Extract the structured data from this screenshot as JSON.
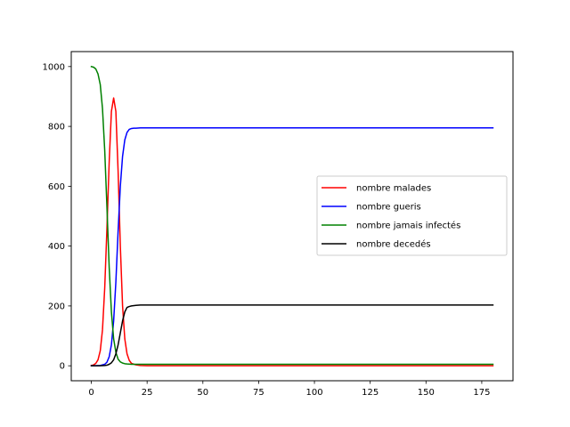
{
  "chart_data": {
    "type": "line",
    "title": "",
    "xlabel": "",
    "ylabel": "",
    "xlim": [
      -9,
      189
    ],
    "ylim": [
      -50,
      1050
    ],
    "xticks": [
      0,
      25,
      50,
      75,
      100,
      125,
      150,
      175
    ],
    "yticks": [
      0,
      200,
      400,
      600,
      800,
      1000
    ],
    "grid": false,
    "legend_position": "center-right",
    "series": [
      {
        "name": "nombre malades",
        "color": "#ff0000",
        "x": [
          0,
          1,
          2,
          3,
          4,
          5,
          6,
          7,
          8,
          9,
          10,
          11,
          12,
          13,
          14,
          15,
          16,
          17,
          18,
          20,
          22,
          25,
          180
        ],
        "y": [
          1,
          3,
          8,
          20,
          50,
          120,
          260,
          460,
          680,
          850,
          895,
          850,
          650,
          400,
          200,
          90,
          40,
          18,
          8,
          3,
          1,
          0,
          0
        ]
      },
      {
        "name": "nombre gueris",
        "color": "#0000ff",
        "x": [
          0,
          2,
          4,
          6,
          7,
          8,
          9,
          10,
          11,
          12,
          13,
          14,
          15,
          16,
          17,
          18,
          19,
          20,
          22,
          25,
          180
        ],
        "y": [
          0,
          0,
          1,
          5,
          12,
          30,
          70,
          150,
          280,
          450,
          600,
          700,
          755,
          780,
          790,
          793,
          794,
          794,
          795,
          795,
          795
        ]
      },
      {
        "name": "nombre jamais infectés",
        "color": "#008000",
        "x": [
          0,
          1,
          2,
          3,
          4,
          5,
          6,
          7,
          8,
          9,
          10,
          11,
          12,
          13,
          14,
          15,
          16,
          18,
          20,
          22,
          25,
          180
        ],
        "y": [
          1000,
          998,
          992,
          975,
          940,
          860,
          720,
          530,
          330,
          180,
          90,
          45,
          22,
          13,
          9,
          7,
          6,
          5,
          5,
          5,
          5,
          5
        ]
      },
      {
        "name": "nombre decedés",
        "color": "#000000",
        "x": [
          0,
          2,
          4,
          6,
          7,
          8,
          9,
          10,
          11,
          12,
          13,
          14,
          15,
          16,
          17,
          18,
          20,
          22,
          25,
          180
        ],
        "y": [
          0,
          0,
          0,
          1,
          2,
          5,
          10,
          20,
          40,
          70,
          110,
          150,
          180,
          195,
          198,
          200,
          202,
          203,
          203,
          203
        ]
      }
    ]
  }
}
